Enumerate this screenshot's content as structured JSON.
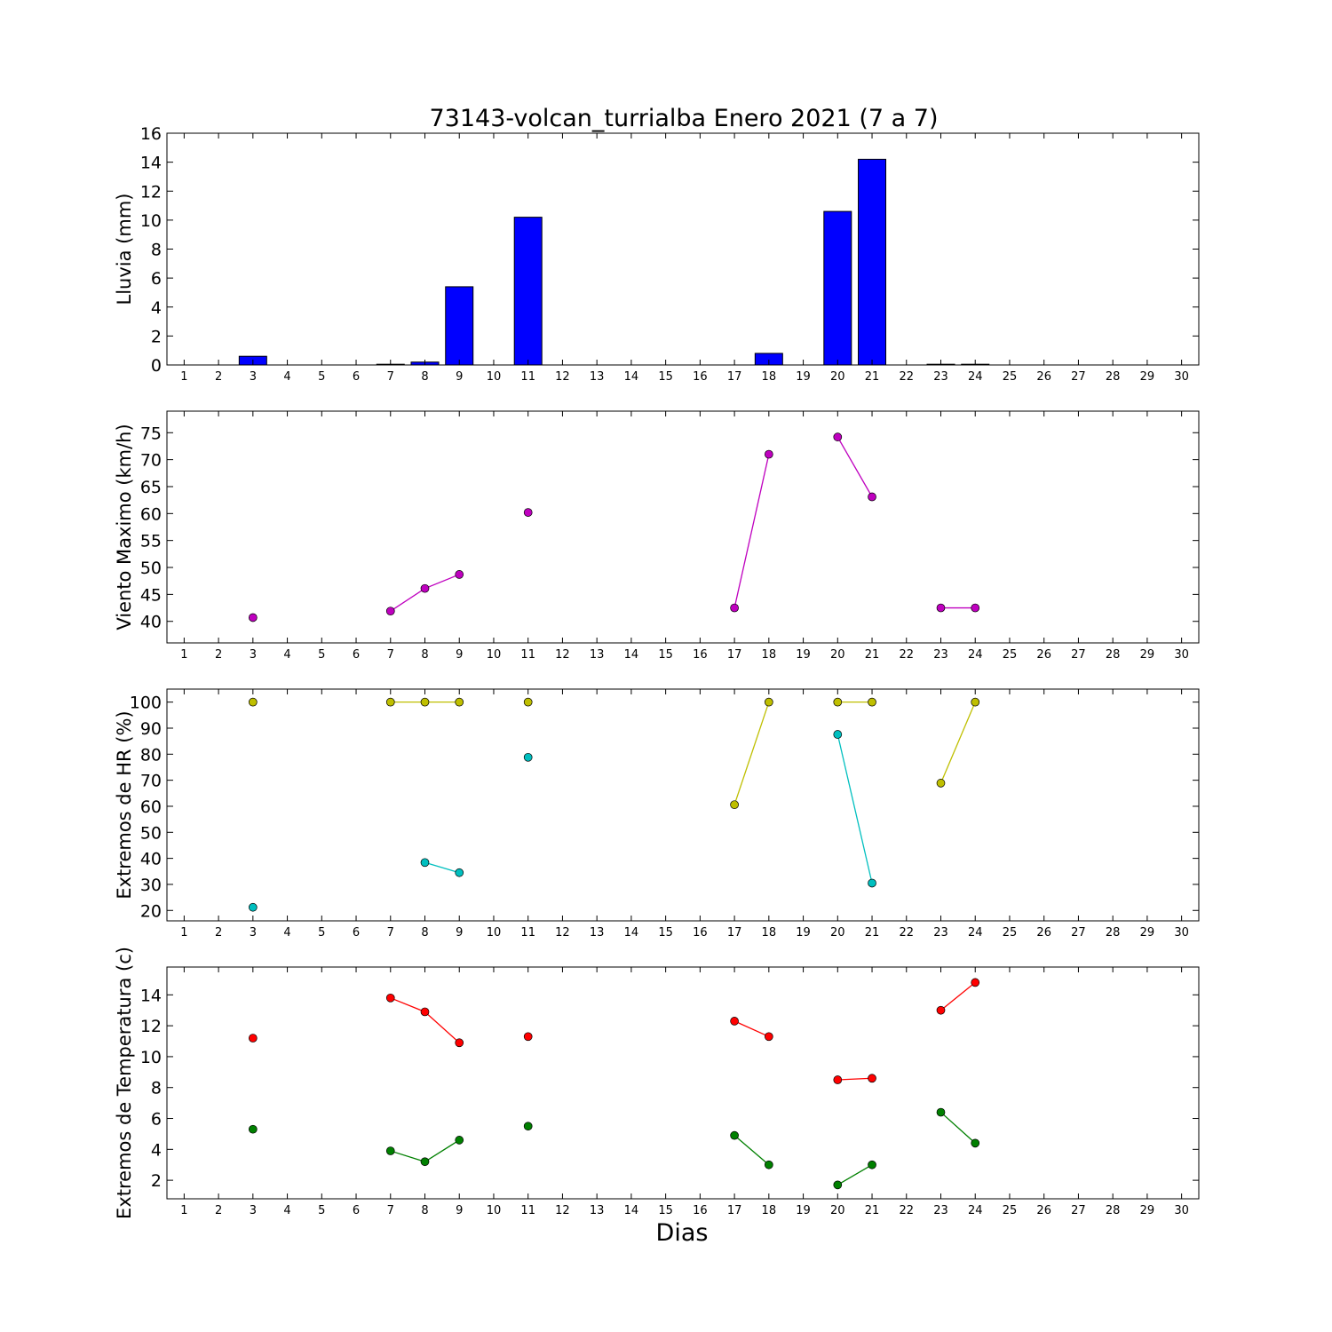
{
  "figure": {
    "title": "73143-volcan_turrialba Enero 2021  (7 a 7)",
    "xlabel": "Dias"
  },
  "chart_data": [
    {
      "type": "bar",
      "ylabel": "Lluvia (mm)",
      "ylim": [
        0,
        16
      ],
      "yticks": [
        0,
        2,
        4,
        6,
        8,
        10,
        12,
        14,
        16
      ],
      "xlim": [
        0.5,
        30.5
      ],
      "xticks": [
        1,
        2,
        3,
        4,
        5,
        6,
        7,
        8,
        9,
        10,
        11,
        12,
        13,
        14,
        15,
        16,
        17,
        18,
        19,
        20,
        21,
        22,
        23,
        24,
        25,
        26,
        27,
        28,
        29,
        30
      ],
      "grid": false,
      "color": "#0000ff",
      "series": [
        {
          "x": [
            3,
            7,
            8,
            9,
            11,
            18,
            20,
            21,
            23,
            24
          ],
          "values": [
            0.6,
            0.05,
            0.2,
            5.4,
            10.2,
            0.8,
            10.6,
            14.2,
            0.05,
            0.05
          ]
        }
      ]
    },
    {
      "type": "line",
      "ylabel": "Viento Maximo (km/h)",
      "ylim": [
        36,
        79
      ],
      "yticks": [
        40,
        45,
        50,
        55,
        60,
        65,
        70,
        75
      ],
      "xlim": [
        0.5,
        30.5
      ],
      "xticks": [
        1,
        2,
        3,
        4,
        5,
        6,
        7,
        8,
        9,
        10,
        11,
        12,
        13,
        14,
        15,
        16,
        17,
        18,
        19,
        20,
        21,
        22,
        23,
        24,
        25,
        26,
        27,
        28,
        29,
        30
      ],
      "grid": false,
      "series": [
        {
          "color": "#bf00bf",
          "segments": [
            [
              [
                3,
                40.7
              ]
            ],
            [
              [
                7,
                41.9
              ],
              [
                8,
                46.1
              ],
              [
                9,
                48.7
              ]
            ],
            [
              [
                11,
                60.2
              ]
            ],
            [
              [
                17,
                42.5
              ],
              [
                18,
                71.0
              ]
            ],
            [
              [
                20,
                74.2
              ],
              [
                21,
                63.1
              ]
            ],
            [
              [
                23,
                42.5
              ],
              [
                24,
                42.5
              ]
            ]
          ]
        }
      ]
    },
    {
      "type": "line",
      "ylabel": "Extremos de HR (%)",
      "ylim": [
        16,
        105
      ],
      "yticks": [
        20,
        30,
        40,
        50,
        60,
        70,
        80,
        90,
        100
      ],
      "xlim": [
        0.5,
        30.5
      ],
      "xticks": [
        1,
        2,
        3,
        4,
        5,
        6,
        7,
        8,
        9,
        10,
        11,
        12,
        13,
        14,
        15,
        16,
        17,
        18,
        19,
        20,
        21,
        22,
        23,
        24,
        25,
        26,
        27,
        28,
        29,
        30
      ],
      "grid": false,
      "series": [
        {
          "color": "#bfbf00",
          "segments": [
            [
              [
                3,
                100
              ]
            ],
            [
              [
                7,
                100
              ],
              [
                8,
                100
              ],
              [
                9,
                100
              ]
            ],
            [
              [
                11,
                100
              ]
            ],
            [
              [
                17,
                60.6
              ],
              [
                18,
                100
              ]
            ],
            [
              [
                20,
                100
              ],
              [
                21,
                100
              ]
            ],
            [
              [
                23,
                68.9
              ],
              [
                24,
                100
              ]
            ]
          ]
        },
        {
          "color": "#00bfbf",
          "segments": [
            [
              [
                3,
                21.2
              ]
            ],
            [
              [
                8,
                38.4
              ],
              [
                9,
                34.5
              ]
            ],
            [
              [
                11,
                78.8
              ]
            ],
            [
              [
                20,
                87.6
              ],
              [
                21,
                30.5
              ]
            ]
          ]
        }
      ]
    },
    {
      "type": "line",
      "ylabel": "Extremos de Temperatura (c)",
      "ylim": [
        0.8,
        15.8
      ],
      "yticks": [
        2,
        4,
        6,
        8,
        10,
        12,
        14
      ],
      "xlim": [
        0.5,
        30.5
      ],
      "xticks": [
        1,
        2,
        3,
        4,
        5,
        6,
        7,
        8,
        9,
        10,
        11,
        12,
        13,
        14,
        15,
        16,
        17,
        18,
        19,
        20,
        21,
        22,
        23,
        24,
        25,
        26,
        27,
        28,
        29,
        30
      ],
      "grid": false,
      "series": [
        {
          "color": "#ff0000",
          "segments": [
            [
              [
                3,
                11.2
              ]
            ],
            [
              [
                7,
                13.8
              ],
              [
                8,
                12.9
              ],
              [
                9,
                10.9
              ]
            ],
            [
              [
                11,
                11.3
              ]
            ],
            [
              [
                17,
                12.3
              ],
              [
                18,
                11.3
              ]
            ],
            [
              [
                20,
                8.5
              ],
              [
                21,
                8.6
              ]
            ],
            [
              [
                23,
                13.0
              ],
              [
                24,
                14.8
              ]
            ]
          ]
        },
        {
          "color": "#008000",
          "segments": [
            [
              [
                3,
                5.3
              ]
            ],
            [
              [
                7,
                3.9
              ],
              [
                8,
                3.2
              ],
              [
                9,
                4.6
              ]
            ],
            [
              [
                11,
                5.5
              ]
            ],
            [
              [
                17,
                4.9
              ],
              [
                18,
                3.0
              ]
            ],
            [
              [
                20,
                1.7
              ],
              [
                21,
                3.0
              ]
            ],
            [
              [
                23,
                6.4
              ],
              [
                24,
                4.4
              ]
            ]
          ]
        }
      ]
    }
  ]
}
